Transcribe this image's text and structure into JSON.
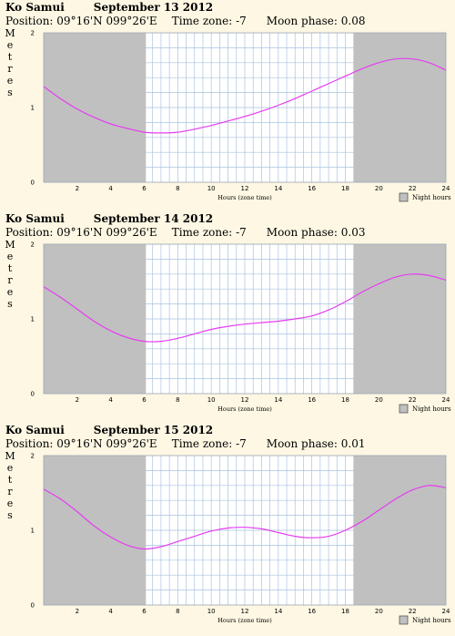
{
  "chart_data": [
    {
      "type": "line",
      "place": "Ko Samui",
      "date": "September 13 2012",
      "position_label": "Position:",
      "position": "09°16'N 099°26'E",
      "timezone_label": "Time zone:",
      "timezone": "-7",
      "moon_label": "Moon phase:",
      "moon_phase": "0.08",
      "ylabel": "Metres",
      "xlabel": "Hours (zone time)",
      "legend": "Night hours",
      "xlim": [
        0,
        24
      ],
      "ylim": [
        0,
        2
      ],
      "xticks": [
        "2",
        "4",
        "6",
        "8",
        "10",
        "12",
        "14",
        "16",
        "18",
        "20",
        "22",
        "24"
      ],
      "yticks": [
        "0",
        "1",
        "2"
      ],
      "night": [
        [
          0,
          6.1
        ],
        [
          18.5,
          24
        ]
      ],
      "colors": {
        "curve": "#e63cf0",
        "night": "#c0c0c0",
        "grid": "#a9c3e0",
        "day": "#ffffff"
      },
      "x": [
        0,
        1,
        2,
        3,
        4,
        5,
        6,
        7,
        8,
        9,
        10,
        11,
        12,
        13,
        14,
        15,
        16,
        17,
        18,
        19,
        20,
        21,
        22,
        23,
        24
      ],
      "y": [
        1.28,
        1.12,
        0.98,
        0.87,
        0.78,
        0.72,
        0.67,
        0.66,
        0.67,
        0.71,
        0.76,
        0.82,
        0.88,
        0.95,
        1.03,
        1.12,
        1.22,
        1.32,
        1.42,
        1.52,
        1.6,
        1.65,
        1.65,
        1.6,
        1.5
      ]
    },
    {
      "type": "line",
      "place": "Ko Samui",
      "date": "September 14 2012",
      "position_label": "Position:",
      "position": "09°16'N 099°26'E",
      "timezone_label": "Time zone:",
      "timezone": "-7",
      "moon_label": "Moon phase:",
      "moon_phase": "0.03",
      "ylabel": "Metres",
      "xlabel": "Hours (zone time)",
      "legend": "Night hours",
      "xlim": [
        0,
        24
      ],
      "ylim": [
        0,
        2
      ],
      "xticks": [
        "2",
        "4",
        "6",
        "8",
        "10",
        "12",
        "14",
        "16",
        "18",
        "20",
        "22",
        "24"
      ],
      "yticks": [
        "0",
        "1",
        "2"
      ],
      "night": [
        [
          0,
          6.1
        ],
        [
          18.5,
          24
        ]
      ],
      "colors": {
        "curve": "#e63cf0",
        "night": "#c0c0c0",
        "grid": "#a9c3e0",
        "day": "#ffffff"
      },
      "x": [
        0,
        1,
        2,
        3,
        4,
        5,
        6,
        7,
        8,
        9,
        10,
        11,
        12,
        13,
        14,
        15,
        16,
        17,
        18,
        19,
        20,
        21,
        22,
        23,
        24
      ],
      "y": [
        1.43,
        1.29,
        1.13,
        0.97,
        0.84,
        0.75,
        0.7,
        0.7,
        0.74,
        0.8,
        0.86,
        0.9,
        0.93,
        0.95,
        0.97,
        1.0,
        1.04,
        1.12,
        1.23,
        1.36,
        1.47,
        1.56,
        1.6,
        1.58,
        1.52
      ]
    },
    {
      "type": "line",
      "place": "Ko Samui",
      "date": "September 15 2012",
      "position_label": "Position:",
      "position": "09°16'N 099°26'E",
      "timezone_label": "Time zone:",
      "timezone": "-7",
      "moon_label": "Moon phase:",
      "moon_phase": "0.01",
      "ylabel": "Metres",
      "xlabel": "Hours (zone time)",
      "legend": "Night hours",
      "xlim": [
        0,
        24
      ],
      "ylim": [
        0,
        2
      ],
      "xticks": [
        "2",
        "4",
        "6",
        "8",
        "10",
        "12",
        "14",
        "16",
        "18",
        "20",
        "22",
        "24"
      ],
      "yticks": [
        "0",
        "1",
        "2"
      ],
      "night": [
        [
          0,
          6.1
        ],
        [
          18.5,
          24
        ]
      ],
      "colors": {
        "curve": "#e63cf0",
        "night": "#c0c0c0",
        "grid": "#a9c3e0",
        "day": "#ffffff"
      },
      "x": [
        0,
        1,
        2,
        3,
        4,
        5,
        6,
        7,
        8,
        9,
        10,
        11,
        12,
        13,
        14,
        15,
        16,
        17,
        18,
        19,
        20,
        21,
        22,
        23,
        24
      ],
      "y": [
        1.55,
        1.42,
        1.25,
        1.06,
        0.91,
        0.8,
        0.75,
        0.78,
        0.85,
        0.92,
        0.99,
        1.03,
        1.04,
        1.02,
        0.97,
        0.92,
        0.9,
        0.92,
        1.0,
        1.12,
        1.27,
        1.42,
        1.54,
        1.6,
        1.57
      ]
    }
  ]
}
